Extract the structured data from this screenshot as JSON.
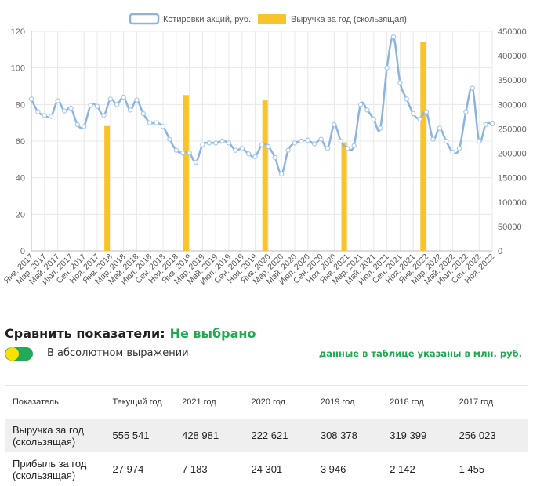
{
  "chart_data": {
    "type": "line",
    "legend": [
      {
        "name": "Котировки акций, руб.",
        "kind": "line",
        "color": "#8cb4e0"
      },
      {
        "name": "Выручка за год (скользящая)",
        "kind": "bar",
        "color": "#f7c52a"
      }
    ],
    "legend_position": "top-center",
    "x_labels": [
      "Янв. 2017",
      "Мар. 2017",
      "Май. 2017",
      "Июл. 2017",
      "Сен. 2017",
      "Ноя. 2017",
      "Янв. 2018",
      "Мар. 2018",
      "Май. 2018",
      "Июл. 2018",
      "Сен. 2018",
      "Ноя. 2018",
      "Янв. 2019",
      "Мар. 2019",
      "Май. 2019",
      "Июл. 2019",
      "Сен. 2019",
      "Ноя. 2019",
      "Янв. 2020",
      "Мар. 2020",
      "Май. 2020",
      "Июл. 2020",
      "Сен. 2020",
      "Ноя. 2020",
      "Янв. 2021",
      "Мар. 2021",
      "Май. 2021",
      "Июл. 2021",
      "Сен. 2021",
      "Ноя. 2021",
      "Янв. 2022",
      "Мар. 2022",
      "Май. 2022",
      "Июл. 2022",
      "Сен. 2022",
      "Ноя. 2022"
    ],
    "y_left": {
      "min": 0,
      "max": 120,
      "ticks": [
        0,
        20,
        40,
        60,
        80,
        100,
        120
      ]
    },
    "y_right": {
      "min": 0,
      "max": 450000,
      "ticks": [
        0,
        50000,
        100000,
        150000,
        200000,
        250000,
        300000,
        350000,
        400000,
        450000
      ]
    },
    "grid": true,
    "series": [
      {
        "name": "Котировки акций, руб.",
        "axis": "left",
        "values": [
          83,
          76,
          74,
          73.5,
          82,
          76.5,
          78,
          69,
          68,
          79.5,
          79,
          74,
          83,
          80,
          84,
          77,
          82.5,
          75,
          70,
          70,
          68,
          61,
          55,
          53.5,
          53.5,
          48.5,
          58,
          59,
          59,
          60,
          59,
          55,
          56,
          53,
          51.5,
          58,
          57,
          51,
          42,
          55,
          59,
          60,
          60.5,
          58.5,
          61,
          56,
          69,
          60,
          56,
          57.5,
          80,
          77,
          72,
          67,
          100,
          117,
          92,
          83,
          75,
          72,
          76,
          61,
          67,
          60,
          54,
          56,
          76,
          89,
          60,
          69,
          69.5
        ]
      },
      {
        "name": "Выручка за год (скользящая)",
        "axis": "right",
        "type": "bar",
        "x_index": [
          11.5,
          23.5,
          35.5,
          47.5,
          59.5
        ],
        "values": [
          256023,
          319399,
          308378,
          222621,
          428981
        ]
      }
    ]
  },
  "compare": {
    "label": "Сравнить показатели:",
    "value": "Не выбрано"
  },
  "toggle": {
    "label": "В абсолютном выражении"
  },
  "units_note": "данные в таблице указаны в млн. руб.",
  "table": {
    "headers": [
      "Показатель",
      "Текущий год",
      "2021 год",
      "2020 год",
      "2019 год",
      "2018 год",
      "2017 год"
    ],
    "rows": [
      {
        "label": "Выручка за год (скользящая)",
        "values": [
          "555 541",
          "428 981",
          "222 621",
          "308 378",
          "319 399",
          "256 023"
        ]
      },
      {
        "label": "Прибыль за год (скользящая)",
        "values": [
          "27 974",
          "7 183",
          "24 301",
          "3 946",
          "2 142",
          "1 455"
        ]
      }
    ]
  }
}
